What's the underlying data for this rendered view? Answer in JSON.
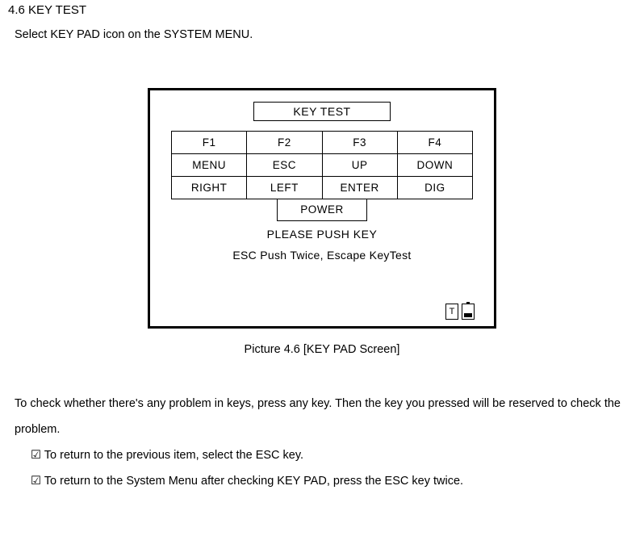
{
  "heading": "4.6 KEY TEST",
  "intro": "Select KEY PAD icon on the SYSTEM MENU.",
  "screen": {
    "title": "KEY TEST",
    "rows": [
      [
        "F1",
        "F2",
        "F3",
        "F4"
      ],
      [
        "MENU",
        "ESC",
        "UP",
        "DOWN"
      ],
      [
        "RIGHT",
        "LEFT",
        "ENTER",
        "DIG"
      ]
    ],
    "power": "POWER",
    "push_key": "PLEASE PUSH KEY",
    "esc_note": "ESC Push Twice, Escape KeyTest",
    "status_t": "T"
  },
  "caption": "Picture 4.6 [KEY PAD Screen]",
  "para1": "To check whether there's any problem in keys, press any key. Then the key you pressed will be reserved to check the problem.",
  "bullet1": "To return to the previous item, select the ESC key.",
  "bullet2": "To return to the System Menu after checking KEY PAD, press the ESC key twice."
}
